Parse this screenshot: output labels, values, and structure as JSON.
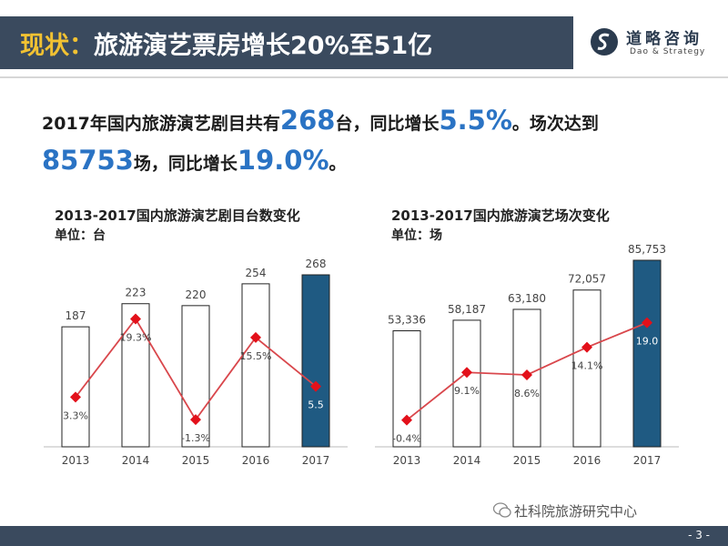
{
  "header": {
    "title_prefix": "现状：",
    "title_main": "旅游演艺票房增长20%至51亿",
    "logo_cn": "道略咨询",
    "logo_en": "Dao & Strategy"
  },
  "headline": {
    "part1": "2017年国内旅游演艺剧目共有",
    "num1": "268",
    "part2": "台，同比增长",
    "num2": "5.5%",
    "part3": "。场次达到",
    "num3": "85753",
    "part4": "场，同比增长",
    "num4": "19.0%",
    "part5": "。"
  },
  "chart_data": [
    {
      "type": "bar",
      "title": "2013-2017国内旅游演艺剧目台数变化",
      "unit": "单位：台",
      "categories": [
        "2013",
        "2014",
        "2015",
        "2016",
        "2017"
      ],
      "values": [
        187,
        223,
        220,
        254,
        268
      ],
      "value_labels": [
        "187",
        "223",
        "220",
        "254",
        "268"
      ],
      "growth": [
        3.3,
        19.3,
        -1.3,
        15.5,
        5.5
      ],
      "growth_labels": [
        "3.3%",
        "19.3%",
        "-1.3%",
        "15.5%",
        "5.5"
      ],
      "bar_colors": [
        "#ffffff",
        "#ffffff",
        "#ffffff",
        "#ffffff",
        "#1f5a82"
      ],
      "line_color": "#d9474c",
      "marker_color": "#e3101a"
    },
    {
      "type": "bar",
      "title": "2013-2017国内旅游演艺场次变化",
      "unit": "单位：场",
      "categories": [
        "2013",
        "2014",
        "2015",
        "2016",
        "2017"
      ],
      "values": [
        53336,
        58187,
        63180,
        72057,
        85753
      ],
      "value_labels": [
        "53,336",
        "58,187",
        "63,180",
        "72,057",
        "85,753"
      ],
      "growth": [
        -0.4,
        9.1,
        8.6,
        14.1,
        19.0
      ],
      "growth_labels": [
        "-0.4%",
        "9.1%",
        "8.6%",
        "14.1%",
        "19.0"
      ],
      "bar_colors": [
        "#ffffff",
        "#ffffff",
        "#ffffff",
        "#ffffff",
        "#1f5a82"
      ],
      "line_color": "#d9474c",
      "marker_color": "#e3101a"
    }
  ],
  "footer": {
    "brand": "社科院旅游研究中心",
    "page": "- 3 -"
  }
}
